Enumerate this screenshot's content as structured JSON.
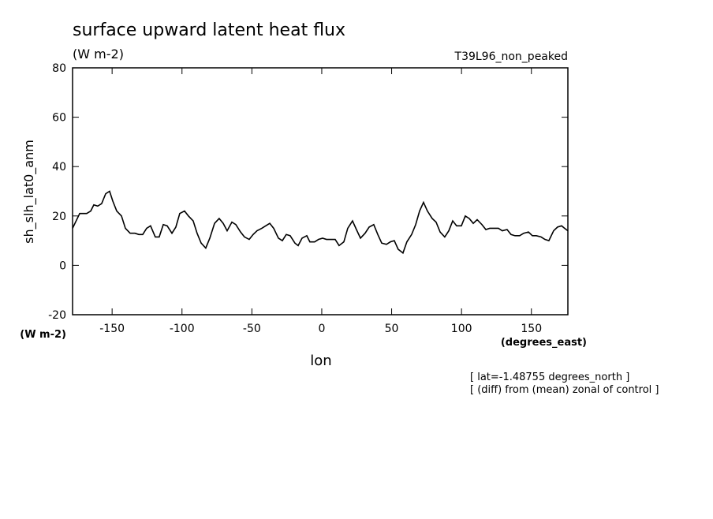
{
  "chart_data": {
    "type": "line",
    "title": "surface upward latent heat flux",
    "units": "(W m-2)",
    "dataset": "T39L96_non_peaked",
    "y_label": "sh_slh_lat0_anm",
    "y_units": "(W m-2)",
    "x_label": "lon",
    "x_units": "(degrees_east)",
    "notes": [
      "[ lat=-1.48755 degrees_north ]",
      "[ (diff) from (mean) zonal of control ]"
    ],
    "x": [
      -178.3,
      -173.2,
      -168.2,
      -165.3,
      -163.1,
      -160.3,
      -157.5,
      -154.6,
      -151.8,
      -149.5,
      -146.7,
      -143.3,
      -140.5,
      -137.1,
      -133.7,
      -130.9,
      -128.1,
      -125.3,
      -122.5,
      -119.1,
      -116.3,
      -113.4,
      -110.6,
      -107.2,
      -104.4,
      -101.6,
      -98.2,
      -95.4,
      -92.0,
      -89.2,
      -86.3,
      -83.0,
      -80.1,
      -76.7,
      -73.4,
      -70.5,
      -67.7,
      -64.3,
      -61.5,
      -58.1,
      -55.3,
      -51.9,
      -49.1,
      -46.3,
      -42.9,
      -40.1,
      -37.2,
      -34.4,
      -31.0,
      -28.2,
      -25.4,
      -22.6,
      -19.2,
      -16.9,
      -14.1,
      -10.7,
      -8.5,
      -5.1,
      -2.3,
      0.6,
      3.4,
      6.8,
      9.6,
      12.4,
      15.8,
      18.6,
      22.0,
      24.8,
      27.7,
      31.0,
      33.9,
      37.2,
      40.1,
      42.9,
      46.3,
      49.1,
      51.9,
      54.7,
      58.1,
      60.9,
      64.3,
      67.2,
      70.0,
      72.8,
      75.6,
      79.0,
      81.8,
      84.7,
      88.0,
      90.9,
      93.7,
      96.5,
      99.9,
      102.7,
      105.5,
      108.4,
      111.2,
      114.6,
      117.4,
      120.2,
      123.6,
      126.4,
      129.2,
      132.6,
      135.4,
      138.3,
      141.6,
      144.5,
      147.9,
      150.7,
      153.5,
      156.9,
      159.7,
      162.5,
      165.9,
      168.7,
      171.6,
      173.8,
      176.1
    ],
    "series": [
      {
        "color": "#000000",
        "values": [
          15,
          21,
          21,
          22,
          24.5,
          24,
          25,
          29,
          30,
          26,
          22,
          20,
          15,
          13,
          13,
          12.5,
          12.5,
          15,
          16,
          11.5,
          11.5,
          16.5,
          16,
          13,
          15.5,
          21,
          22,
          20,
          18,
          13,
          9,
          7,
          11,
          17,
          19,
          17,
          14,
          17.5,
          16.5,
          13.5,
          11.5,
          10.5,
          12.5,
          14,
          15,
          16,
          17,
          15,
          11,
          10,
          12.5,
          12,
          9,
          8,
          11,
          12,
          9.5,
          9.5,
          10.5,
          11,
          10.5,
          10.5,
          10.5,
          8,
          9.5,
          15,
          18,
          14.5,
          11,
          13,
          15.5,
          16.5,
          12.5,
          9,
          8.5,
          9.5,
          10,
          6.5,
          5,
          9.5,
          12.5,
          16.5,
          22,
          25.5,
          22,
          19,
          17.5,
          13.5,
          11.5,
          14,
          18,
          16,
          16,
          20,
          19,
          17,
          18.5,
          16.5,
          14.5,
          15,
          15,
          15,
          14,
          14.5,
          12.5,
          12,
          12,
          13,
          13.5,
          12,
          12,
          11.5,
          10.5,
          10,
          14,
          15.5,
          16,
          15,
          14
        ]
      }
    ],
    "xlim": [
      -178.3,
      176.1
    ],
    "ylim": [
      -20,
      80
    ],
    "xticks": [
      -150,
      -100,
      -50,
      0,
      50,
      100,
      150
    ],
    "yticks": [
      -20,
      0,
      20,
      40,
      60,
      80
    ]
  }
}
